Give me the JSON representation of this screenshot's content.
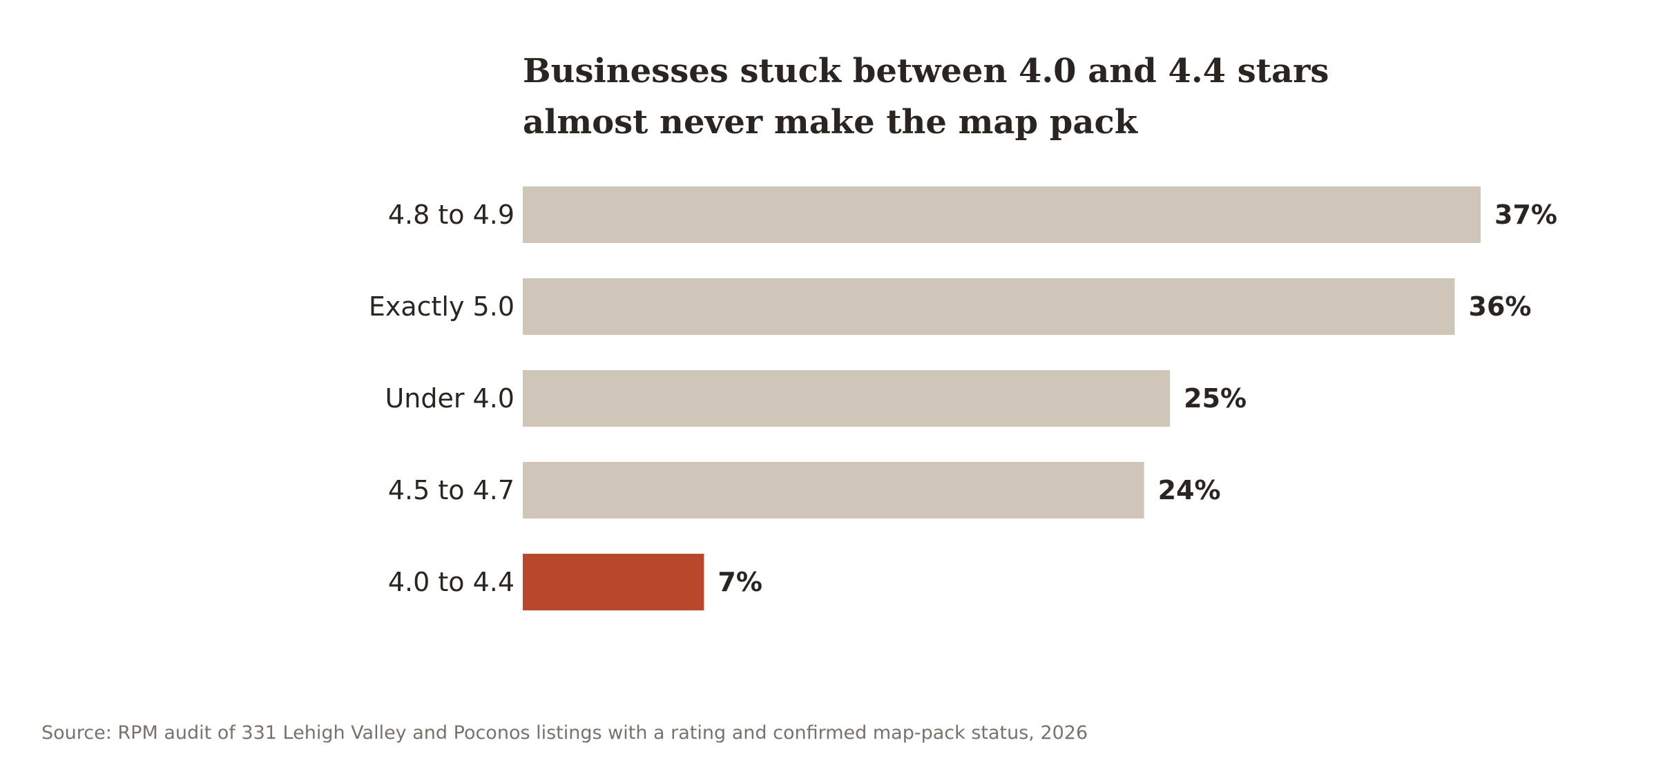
{
  "chart_data": {
    "type": "bar",
    "orientation": "horizontal",
    "title_lines": [
      "Businesses stuck between 4.0 and 4.4 stars",
      "almost never make the map pack"
    ],
    "categories": [
      "4.8 to 4.9",
      "Exactly 5.0",
      "Under 4.0",
      "4.5 to 4.7",
      "4.0 to 4.4"
    ],
    "values": [
      37,
      36,
      25,
      24,
      7
    ],
    "value_labels": [
      "37%",
      "36%",
      "25%",
      "24%",
      "7%"
    ],
    "unit": "%",
    "highlight_category": "4.0 to 4.4",
    "xlim": [
      0,
      37
    ],
    "grid": false,
    "legend": "none",
    "xlabel": "",
    "ylabel": "",
    "source": "Source: RPM audit of 331 Lehigh Valley and Poconos listings with a rating and confirmed map-pack status, 2026"
  },
  "colors": {
    "bar_default": "#d0c5b9",
    "bar_highlight": "#b8482b",
    "text": "#2a2520",
    "source_text": "#7a716a"
  }
}
